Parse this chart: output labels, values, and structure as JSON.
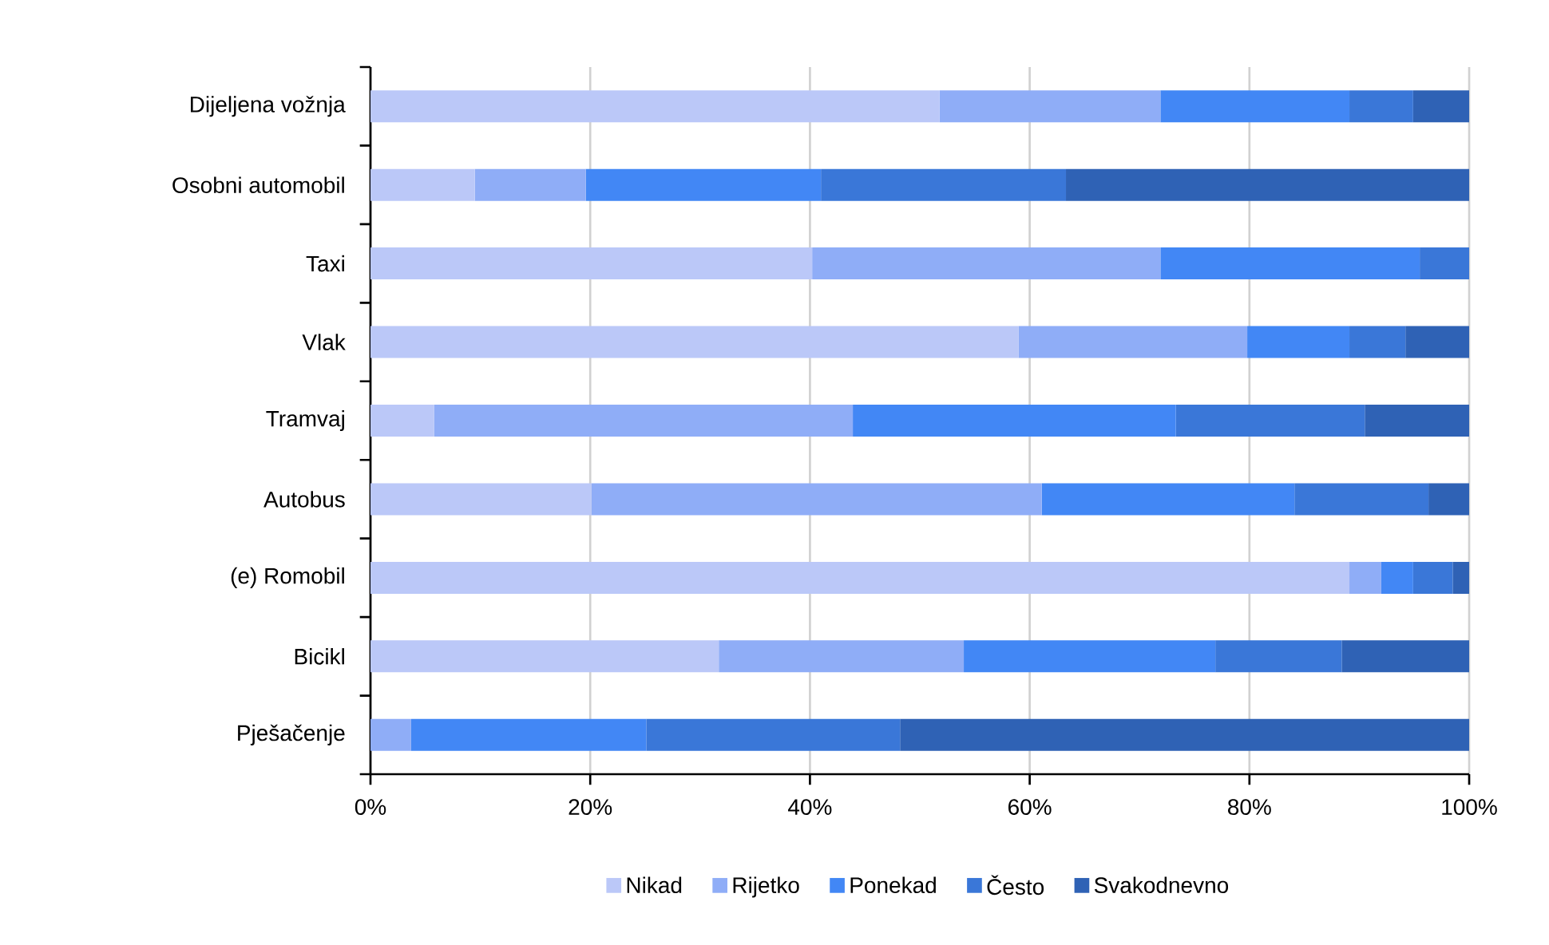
{
  "chart_data": {
    "type": "bar",
    "orientation": "horizontal",
    "stacked": true,
    "categories": [
      "Dijeljena vožnja",
      "Osobni automobil",
      "Taxi",
      "Vlak",
      "Tramvaj",
      "Autobus",
      "(e) Romobil",
      "Bicikl",
      "Pješačenje"
    ],
    "series": [
      {
        "name": "Nikad",
        "color": "#bbc8f8",
        "values": [
          51.8,
          9.5,
          40.2,
          59.0,
          5.8,
          20.1,
          89.1,
          31.7,
          0
        ]
      },
      {
        "name": "Rijetko",
        "color": "#8fadf7",
        "values": [
          20.1,
          10.1,
          31.7,
          20.8,
          38.1,
          41.0,
          2.9,
          22.3,
          3.7
        ]
      },
      {
        "name": "Ponekad",
        "color": "#4287f5",
        "values": [
          17.2,
          21.4,
          23.6,
          9.3,
          29.4,
          23.0,
          2.9,
          22.9,
          21.4
        ]
      },
      {
        "name": "Često",
        "color": "#3a77d8",
        "values": [
          5.8,
          22.3,
          4.5,
          5.1,
          17.2,
          12.2,
          3.6,
          11.5,
          23.1
        ]
      },
      {
        "name": "Svakodnevno",
        "color": "#2f62b5",
        "values": [
          5.1,
          36.7,
          0,
          5.8,
          9.5,
          3.7,
          1.5,
          11.6,
          51.8
        ]
      }
    ],
    "xlim": [
      0,
      100
    ],
    "xticks": [
      {
        "value": 0,
        "label": "0%"
      },
      {
        "value": 20,
        "label": "20%"
      },
      {
        "value": 40,
        "label": "40%"
      },
      {
        "value": 60,
        "label": "60%"
      },
      {
        "value": 80,
        "label": "80%"
      },
      {
        "value": 100,
        "label": "100%"
      }
    ],
    "grid": "x",
    "legend": "bottom"
  }
}
